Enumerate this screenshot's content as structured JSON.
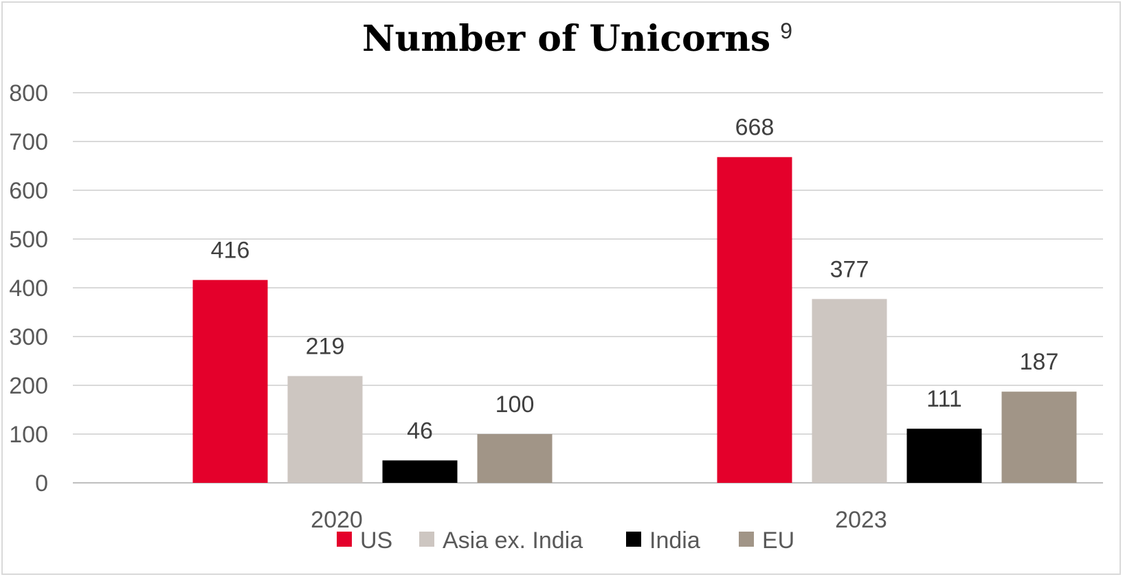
{
  "chart_data": {
    "type": "bar",
    "title": "Number of Unicorns",
    "title_superscript": "9",
    "categories": [
      "2020",
      "2023"
    ],
    "series": [
      {
        "name": "US",
        "color": "#e4002b",
        "values": [
          416,
          668
        ]
      },
      {
        "name": "Asia ex. India",
        "color": "#cdc6c1",
        "values": [
          219,
          377
        ]
      },
      {
        "name": "India",
        "color": "#000000",
        "values": [
          46,
          111
        ]
      },
      {
        "name": "EU",
        "color": "#a19587",
        "values": [
          100,
          187
        ]
      }
    ],
    "ylim": [
      0,
      800
    ],
    "yticks": [
      0,
      100,
      200,
      300,
      400,
      500,
      600,
      700,
      800
    ],
    "xlabel": "",
    "ylabel": "",
    "grid": true,
    "legend_position": "bottom",
    "data_labels": true
  }
}
